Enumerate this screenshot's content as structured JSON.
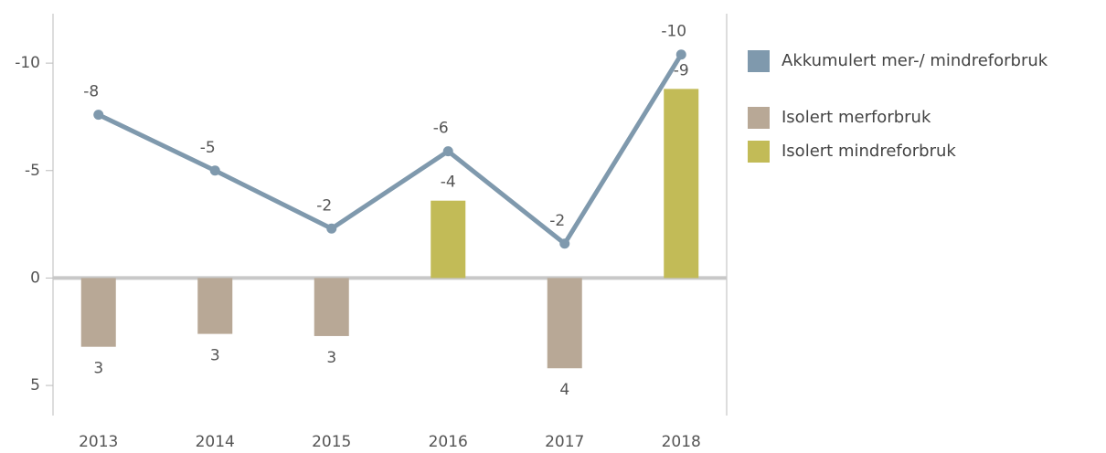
{
  "chart_data": {
    "type": "bar-line",
    "categories": [
      "2013",
      "2014",
      "2015",
      "2016",
      "2017",
      "2018"
    ],
    "ylim": [
      -12.3,
      6.4
    ],
    "inverted": true,
    "yticks": [
      -10,
      -5,
      0,
      5
    ],
    "series": [
      {
        "name": "Akkumulert mer-/ mindreforbruk",
        "type": "line",
        "color": "#7f99ad",
        "values": [
          -7.6,
          -5.0,
          -2.3,
          -5.9,
          -1.6,
          -10.4
        ],
        "value_labels": [
          "-8",
          "-5",
          "-2",
          "-6",
          "-2",
          "-10"
        ]
      },
      {
        "name": "Isolert merforbruk",
        "type": "bar",
        "color": "#b8a896",
        "values": [
          3.2,
          2.6,
          2.7,
          null,
          4.2,
          null
        ],
        "value_labels": [
          "3",
          "3",
          "3",
          null,
          "4",
          null
        ]
      },
      {
        "name": "Isolert mindreforbruk",
        "type": "bar",
        "color": "#c2bb57",
        "values": [
          null,
          null,
          null,
          -3.6,
          null,
          -8.8
        ],
        "value_labels": [
          null,
          null,
          null,
          "-4",
          null,
          "-9"
        ]
      }
    ]
  }
}
